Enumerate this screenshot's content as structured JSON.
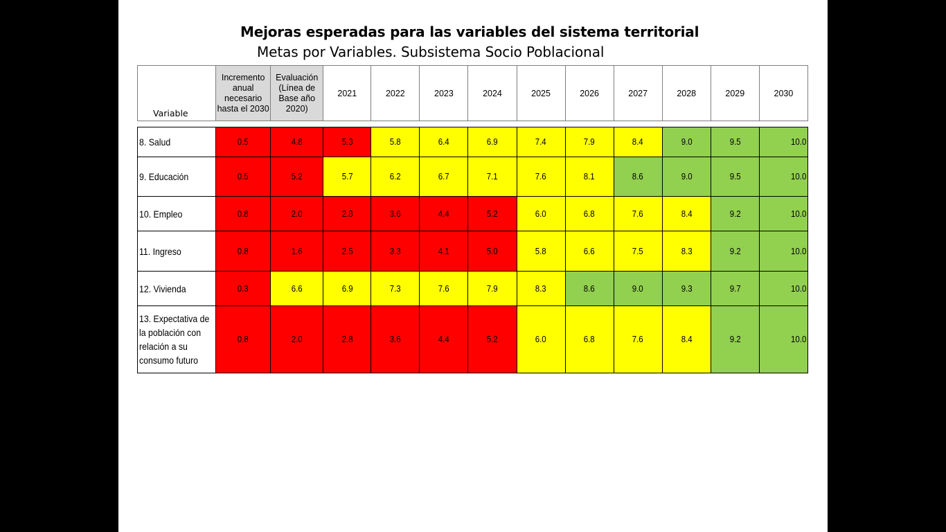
{
  "title": "Mejoras esperadas para las variables del sistema territorial",
  "subtitle": "Metas por Variables. Subsistema Socio Poblacional",
  "header": {
    "variable": "Variable",
    "incremento": "Incremento anual necesario hasta el 2030",
    "evaluacion": "Evaluación (Línea de Base año 2020)",
    "years": [
      "2021",
      "2022",
      "2023",
      "2024",
      "2025",
      "2026",
      "2027",
      "2028",
      "2029",
      "2030"
    ]
  },
  "colors": {
    "red": "#ff0000",
    "yellow": "#ffff00",
    "green": "#92d050",
    "header_grey": "#d9d9d9"
  },
  "rows": [
    {
      "label": "8. Salud",
      "values": [
        "0.5",
        "4.8",
        "5.3",
        "5.8",
        "6.4",
        "6.9",
        "7.4",
        "7.9",
        "8.4",
        "9.0",
        "9.5",
        "10.0"
      ],
      "colors": [
        "red",
        "red",
        "red",
        "yellow",
        "yellow",
        "yellow",
        "yellow",
        "yellow",
        "yellow",
        "green",
        "green",
        "green"
      ]
    },
    {
      "label": "9. Educación",
      "values": [
        "0.5",
        "5.2",
        "5.7",
        "6.2",
        "6.7",
        "7.1",
        "7.6",
        "8.1",
        "8.6",
        "9.0",
        "9.5",
        "10.0"
      ],
      "colors": [
        "red",
        "red",
        "yellow",
        "yellow",
        "yellow",
        "yellow",
        "yellow",
        "yellow",
        "green",
        "green",
        "green",
        "green"
      ]
    },
    {
      "label": "10. Empleo",
      "values": [
        "0.8",
        "2.0",
        "2.8",
        "3.6",
        "4.4",
        "5.2",
        "6.0",
        "6.8",
        "7.6",
        "8.4",
        "9.2",
        "10.0"
      ],
      "colors": [
        "red",
        "red",
        "red",
        "red",
        "red",
        "red",
        "yellow",
        "yellow",
        "yellow",
        "yellow",
        "green",
        "green"
      ]
    },
    {
      "label": "11. Ingreso",
      "values": [
        "0.8",
        "1.6",
        "2.5",
        "3.3",
        "4.1",
        "5.0",
        "5.8",
        "6.6",
        "7.5",
        "8.3",
        "9.2",
        "10.0"
      ],
      "colors": [
        "red",
        "red",
        "red",
        "red",
        "red",
        "red",
        "yellow",
        "yellow",
        "yellow",
        "yellow",
        "green",
        "green"
      ]
    },
    {
      "label": "12. Vivienda",
      "values": [
        "0.3",
        "6.6",
        "6.9",
        "7.3",
        "7.6",
        "7.9",
        "8.3",
        "8.6",
        "9.0",
        "9.3",
        "9.7",
        "10.0"
      ],
      "colors": [
        "red",
        "yellow",
        "yellow",
        "yellow",
        "yellow",
        "yellow",
        "yellow",
        "green",
        "green",
        "green",
        "green",
        "green"
      ]
    },
    {
      "label": "13. Expectativa de la población con relación a su consumo futuro",
      "values": [
        "0.8",
        "2.0",
        "2.8",
        "3.6",
        "4.4",
        "5.2",
        "6.0",
        "6.8",
        "7.6",
        "8.4",
        "9.2",
        "10.0"
      ],
      "colors": [
        "red",
        "red",
        "red",
        "red",
        "red",
        "red",
        "yellow",
        "yellow",
        "yellow",
        "yellow",
        "green",
        "green"
      ]
    }
  ]
}
